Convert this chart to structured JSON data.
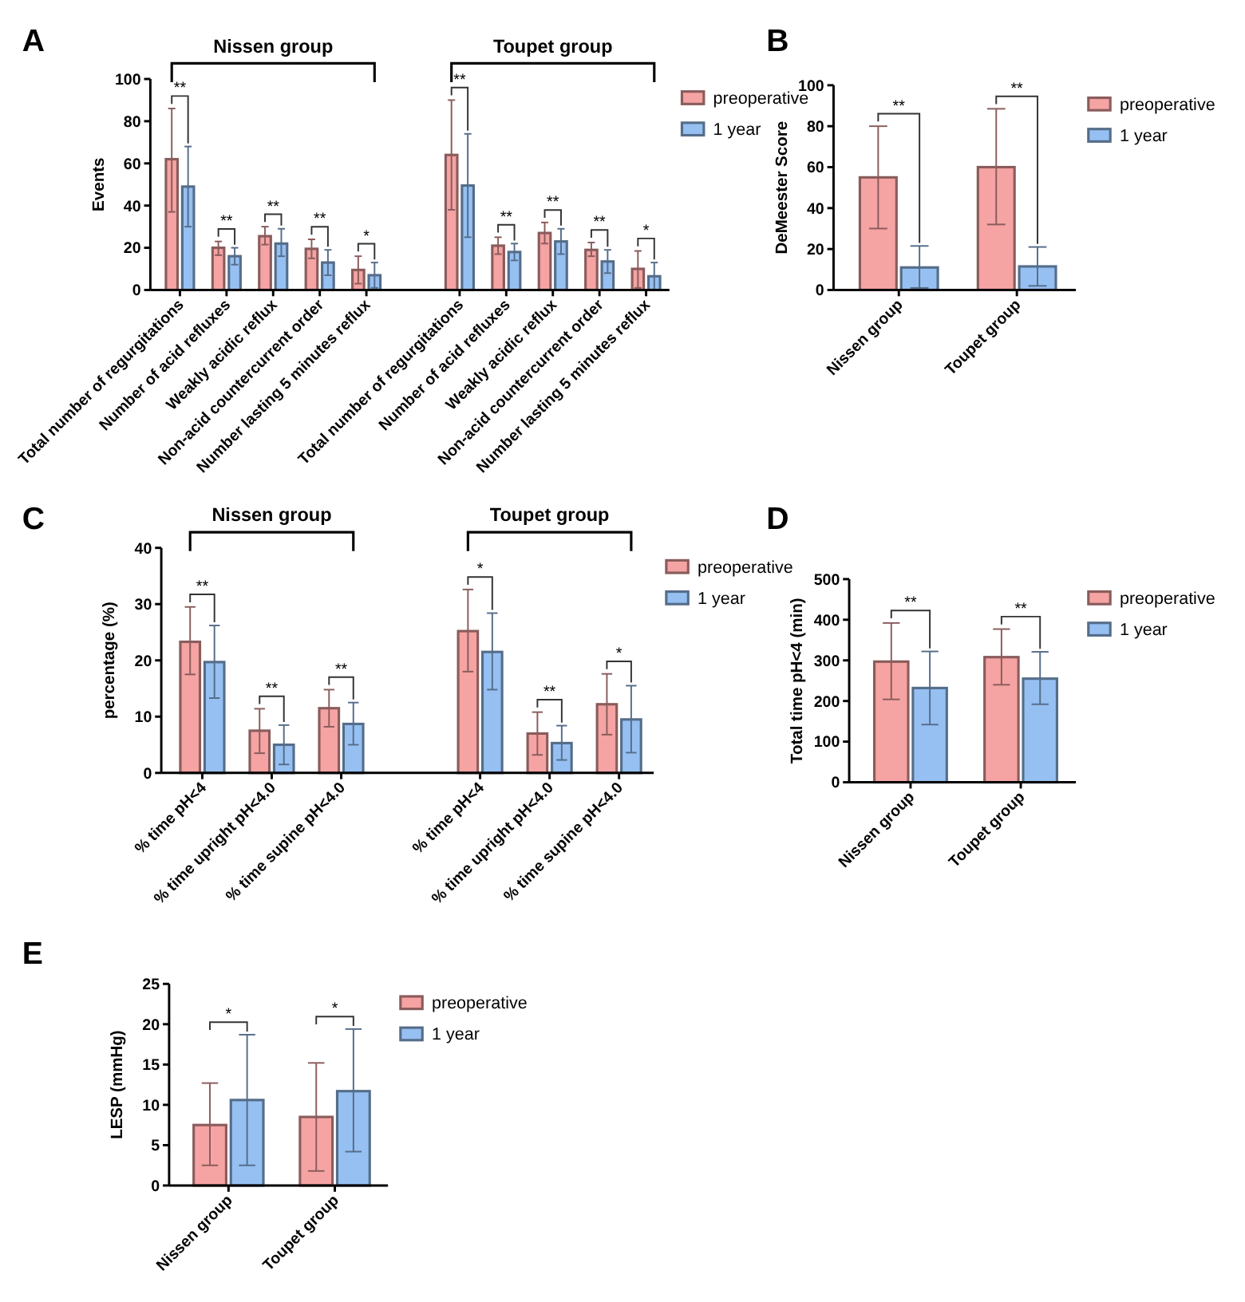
{
  "chart_data": [
    {
      "type": "bar",
      "title": "A",
      "ylabel": "Events",
      "categories": [
        "Total number of regurgitations",
        "Number of acid refluxes",
        "Weakly acidic reflux",
        "Non-acid countercurrent order",
        "Number lasting 5 minutes reflux",
        null,
        "Total number of regurgitations",
        "Number of acid refluxes",
        "Weakly acidic reflux",
        "Non-acid countercurrent order",
        "Number lasting 5 minutes reflux"
      ],
      "series": [
        {
          "name": "preoperative",
          "color": "#f5a3a3",
          "values": [
            62,
            20,
            25.5,
            19.5,
            9.5,
            null,
            64,
            21,
            27,
            19,
            10
          ],
          "errors": [
            [
              37,
              86
            ],
            [
              16.5,
              23
            ],
            [
              21.5,
              30
            ],
            [
              15,
              24
            ],
            [
              3,
              16
            ],
            null,
            [
              38,
              90
            ],
            [
              17,
              25
            ],
            [
              22,
              32
            ],
            [
              16,
              22.5
            ],
            [
              1,
              18.5
            ]
          ]
        },
        {
          "name": "1 year",
          "color": "#96c0f2",
          "values": [
            49,
            16,
            22,
            13,
            7,
            null,
            49.5,
            18,
            23,
            13.5,
            6.5
          ],
          "errors": [
            [
              30,
              68
            ],
            [
              12,
              20
            ],
            [
              16,
              29
            ],
            [
              7,
              19
            ],
            [
              1,
              13
            ],
            null,
            [
              25,
              74
            ],
            [
              14,
              22
            ],
            [
              17,
              29
            ],
            [
              8,
              19
            ],
            [
              0,
              13
            ]
          ]
        }
      ],
      "ylim": [
        0,
        100
      ],
      "yticks": [
        0,
        20,
        40,
        60,
        80,
        100
      ],
      "legend": "right",
      "annotations": [
        "Nissen group",
        "Toupet group",
        "**",
        "**",
        "**",
        "**",
        "*",
        "**",
        "**",
        "**",
        "**",
        "*"
      ]
    },
    {
      "type": "bar",
      "title": "B",
      "ylabel": "DeMeester Score",
      "categories": [
        "Nissen group",
        "Toupet group"
      ],
      "series": [
        {
          "name": "preoperative",
          "color": "#f5a3a3",
          "values": [
            55,
            60
          ],
          "errors": [
            [
              30,
              80
            ],
            [
              32,
              88.5
            ]
          ]
        },
        {
          "name": "1 year",
          "color": "#96c0f2",
          "values": [
            11,
            11.5
          ],
          "errors": [
            [
              1,
              21.5
            ],
            [
              2,
              21
            ]
          ]
        }
      ],
      "ylim": [
        0,
        100
      ],
      "yticks": [
        0,
        20,
        40,
        60,
        80,
        100
      ],
      "legend": "right",
      "annotations": [
        "**",
        "**"
      ]
    },
    {
      "type": "bar",
      "title": "C",
      "ylabel": "percentage (%)",
      "categories": [
        "% time pH<4",
        "% time upright pH<4.0",
        "% time supine pH<4.0",
        null,
        "% time pH<4",
        "% time upright pH<4.0",
        "% time supine pH<4.0"
      ],
      "series": [
        {
          "name": "preoperative",
          "color": "#f5a3a3",
          "values": [
            23.3,
            7.5,
            11.5,
            null,
            25.2,
            7,
            12.2
          ],
          "errors": [
            [
              17.5,
              29.5
            ],
            [
              3.5,
              11.4
            ],
            [
              8.2,
              14.8
            ],
            null,
            [
              18,
              32.6
            ],
            [
              3.2,
              10.8
            ],
            [
              6.8,
              17.6
            ]
          ]
        },
        {
          "name": "1 year",
          "color": "#96c0f2",
          "values": [
            19.7,
            5,
            8.7,
            null,
            21.5,
            5.3,
            9.5
          ],
          "errors": [
            [
              13.3,
              26.2
            ],
            [
              1.5,
              8.5
            ],
            [
              5,
              12.5
            ],
            null,
            [
              14.8,
              28.4
            ],
            [
              2.3,
              8.4
            ],
            [
              3.6,
              15.5
            ]
          ]
        }
      ],
      "ylim": [
        0,
        40
      ],
      "yticks": [
        0,
        10,
        20,
        30,
        40
      ],
      "legend": "right",
      "annotations": [
        "Nissen group",
        "Toupet group",
        "**",
        "**",
        "**",
        "*",
        "**",
        "*"
      ]
    },
    {
      "type": "bar",
      "title": "D",
      "ylabel": "Total time pH<4 (min)",
      "categories": [
        "Nissen group",
        "Toupet group"
      ],
      "series": [
        {
          "name": "preoperative",
          "color": "#f5a3a3",
          "values": [
            297,
            308
          ],
          "errors": [
            [
              204,
              392
            ],
            [
              240,
              377
            ]
          ]
        },
        {
          "name": "1 year",
          "color": "#96c0f2",
          "values": [
            232,
            255
          ],
          "errors": [
            [
              142,
              322
            ],
            [
              192,
              321
            ]
          ]
        }
      ],
      "ylim": [
        0,
        500
      ],
      "yticks": [
        0,
        100,
        200,
        300,
        400,
        500
      ],
      "legend": "right",
      "annotations": [
        "**",
        "**"
      ]
    },
    {
      "type": "bar",
      "title": "E",
      "ylabel": "LESP (mmHg)",
      "categories": [
        "Nissen group",
        "Toupet group"
      ],
      "series": [
        {
          "name": "preoperative",
          "color": "#f5a3a3",
          "values": [
            7.5,
            8.5
          ],
          "errors": [
            [
              2.5,
              12.7
            ],
            [
              1.8,
              15.2
            ]
          ]
        },
        {
          "name": "1 year",
          "color": "#96c0f2",
          "values": [
            10.6,
            11.7
          ],
          "errors": [
            [
              2.5,
              18.7
            ],
            [
              4.2,
              19.4
            ]
          ]
        }
      ],
      "ylim": [
        0,
        25
      ],
      "yticks": [
        0,
        5,
        10,
        15,
        20,
        25
      ],
      "legend": "right",
      "annotations": [
        "*",
        "*"
      ]
    }
  ]
}
